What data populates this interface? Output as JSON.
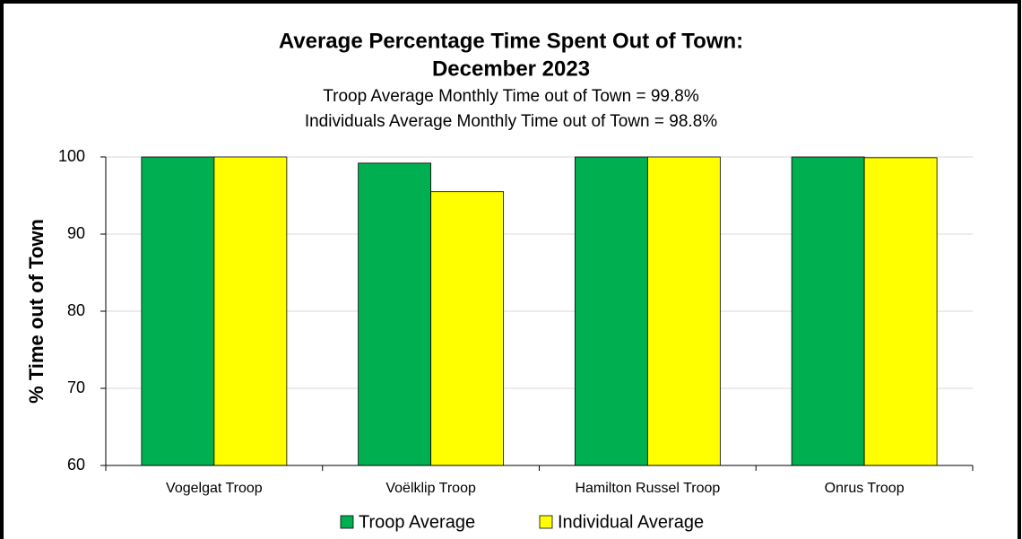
{
  "chart_data": {
    "type": "bar",
    "title": [
      "Average Percentage Time Spent Out of Town:",
      "December 2023"
    ],
    "subtitle": [
      "Troop Average Monthly Time out of Town = 99.8%",
      "Individuals Average Monthly Time out of Town = 98.8%"
    ],
    "y_label": "%  Time out of Town",
    "categories": [
      "Vogelgat Troop",
      "Voëlklip Troop",
      "Hamilton Russel Troop",
      "Onrus Troop"
    ],
    "series": [
      {
        "name": "Troop Average",
        "color": "#00b050",
        "values": [
          100,
          99.2,
          100,
          100
        ]
      },
      {
        "name": "Individual Average",
        "color": "#ffff00",
        "values": [
          100,
          95.5,
          100,
          99.9
        ]
      }
    ],
    "ylim": [
      60,
      100
    ],
    "yticks": [
      60,
      70,
      80,
      90,
      100
    ],
    "grid": true,
    "legend": "bottom"
  }
}
